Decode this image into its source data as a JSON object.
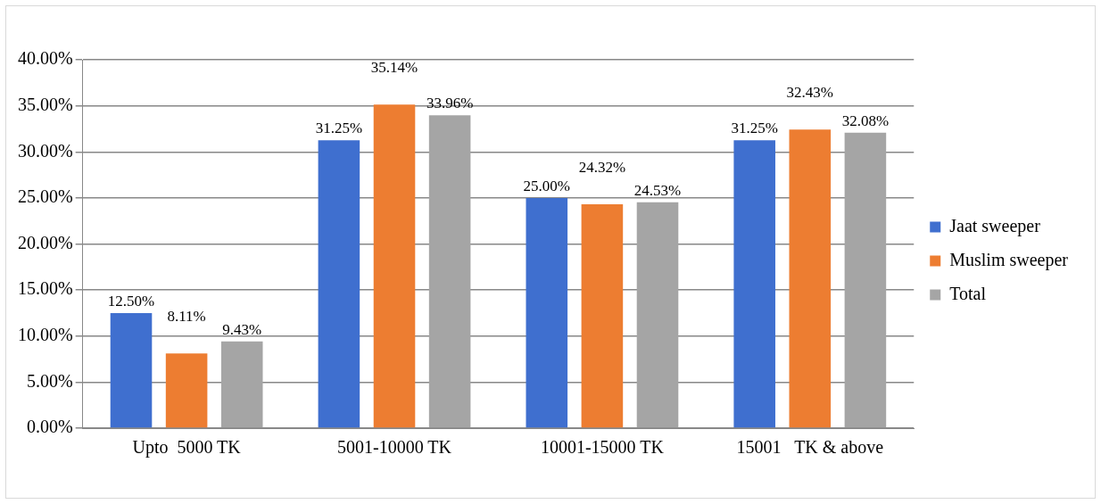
{
  "chart_data": {
    "type": "bar",
    "categories": [
      "Upto  5000 TK",
      "5001-10000 TK",
      "10001-15000 TK",
      "15001   TK & above"
    ],
    "series": [
      {
        "name": "Jaat sweeper",
        "color": "#3f6fcf",
        "values": [
          12.5,
          31.25,
          25.0,
          31.25
        ],
        "value_labels": [
          "12.50%",
          "31.25%",
          "25.00%",
          "31.25%"
        ]
      },
      {
        "name": "Muslim sweeper",
        "color": "#ed7d31",
        "values": [
          8.11,
          35.14,
          24.32,
          32.43
        ],
        "value_labels": [
          "8.11%",
          "35.14%",
          "24.32%",
          "32.43%"
        ]
      },
      {
        "name": "Total",
        "color": "#a5a5a5",
        "values": [
          9.43,
          33.96,
          24.53,
          32.08
        ],
        "value_labels": [
          "9.43%",
          "33.96%",
          "24.53%",
          "32.08%"
        ]
      }
    ],
    "ylim": [
      0,
      40
    ],
    "yticks": [
      {
        "value": 0,
        "label": "0.00%"
      },
      {
        "value": 5,
        "label": "5.00%"
      },
      {
        "value": 10,
        "label": "10.00%"
      },
      {
        "value": 15,
        "label": "15.00%"
      },
      {
        "value": 20,
        "label": "20.00%"
      },
      {
        "value": 25,
        "label": "25.00%"
      },
      {
        "value": 30,
        "label": "30.00%"
      },
      {
        "value": 35,
        "label": "35.00%"
      },
      {
        "value": 40,
        "label": "40.00%"
      }
    ],
    "grid": "y",
    "legend": "right"
  }
}
